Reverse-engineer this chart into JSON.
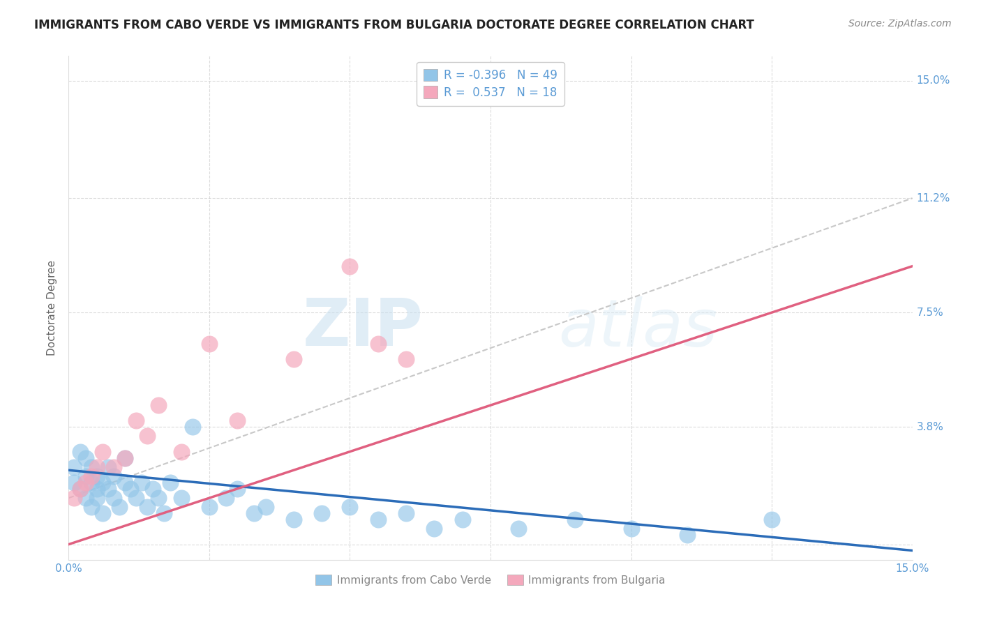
{
  "title": "IMMIGRANTS FROM CABO VERDE VS IMMIGRANTS FROM BULGARIA DOCTORATE DEGREE CORRELATION CHART",
  "source": "Source: ZipAtlas.com",
  "ylabel": "Doctorate Degree",
  "xlim": [
    0.0,
    0.15
  ],
  "ylim": [
    -0.005,
    0.158
  ],
  "xticklabels": [
    "0.0%",
    "15.0%"
  ],
  "ytick_values": [
    0.0,
    0.038,
    0.075,
    0.112,
    0.15
  ],
  "ytick_labels": [
    "",
    "3.8%",
    "7.5%",
    "11.2%",
    "15.0%"
  ],
  "cabo_verde_r": -0.396,
  "cabo_verde_n": 49,
  "bulgaria_r": 0.537,
  "bulgaria_n": 18,
  "cabo_verde_color": "#92C5E8",
  "bulgaria_color": "#F4A8BC",
  "cabo_verde_line_color": "#2B6CB8",
  "bulgaria_line_color": "#E06080",
  "dashed_line_color": "#C8C8C8",
  "cabo_verde_x": [
    0.001,
    0.001,
    0.002,
    0.002,
    0.003,
    0.003,
    0.003,
    0.004,
    0.004,
    0.004,
    0.005,
    0.005,
    0.005,
    0.006,
    0.006,
    0.007,
    0.007,
    0.008,
    0.008,
    0.009,
    0.01,
    0.01,
    0.011,
    0.012,
    0.013,
    0.014,
    0.015,
    0.016,
    0.017,
    0.018,
    0.02,
    0.022,
    0.025,
    0.028,
    0.03,
    0.033,
    0.035,
    0.04,
    0.045,
    0.05,
    0.055,
    0.06,
    0.065,
    0.07,
    0.08,
    0.09,
    0.1,
    0.11,
    0.125
  ],
  "cabo_verde_y": [
    0.02,
    0.025,
    0.018,
    0.03,
    0.015,
    0.022,
    0.028,
    0.012,
    0.02,
    0.025,
    0.015,
    0.018,
    0.022,
    0.01,
    0.02,
    0.018,
    0.025,
    0.015,
    0.022,
    0.012,
    0.02,
    0.028,
    0.018,
    0.015,
    0.02,
    0.012,
    0.018,
    0.015,
    0.01,
    0.02,
    0.015,
    0.038,
    0.012,
    0.015,
    0.018,
    0.01,
    0.012,
    0.008,
    0.01,
    0.012,
    0.008,
    0.01,
    0.005,
    0.008,
    0.005,
    0.008,
    0.005,
    0.003,
    0.008
  ],
  "bulgaria_x": [
    0.001,
    0.002,
    0.003,
    0.004,
    0.005,
    0.006,
    0.008,
    0.01,
    0.012,
    0.014,
    0.016,
    0.02,
    0.025,
    0.03,
    0.04,
    0.05,
    0.055,
    0.06
  ],
  "bulgaria_y": [
    0.015,
    0.018,
    0.02,
    0.022,
    0.025,
    0.03,
    0.025,
    0.028,
    0.04,
    0.035,
    0.045,
    0.03,
    0.065,
    0.04,
    0.06,
    0.09,
    0.065,
    0.06
  ],
  "watermark_zip": "ZIP",
  "watermark_atlas": "atlas",
  "background_color": "#FFFFFF",
  "grid_color": "#CCCCCC",
  "tick_label_color": "#5B9BD5",
  "ylabel_color": "#666666",
  "title_color": "#222222",
  "source_color": "#888888",
  "legend_text_color": "#5B9BD5",
  "legend_n_color": "#5B9BD5"
}
